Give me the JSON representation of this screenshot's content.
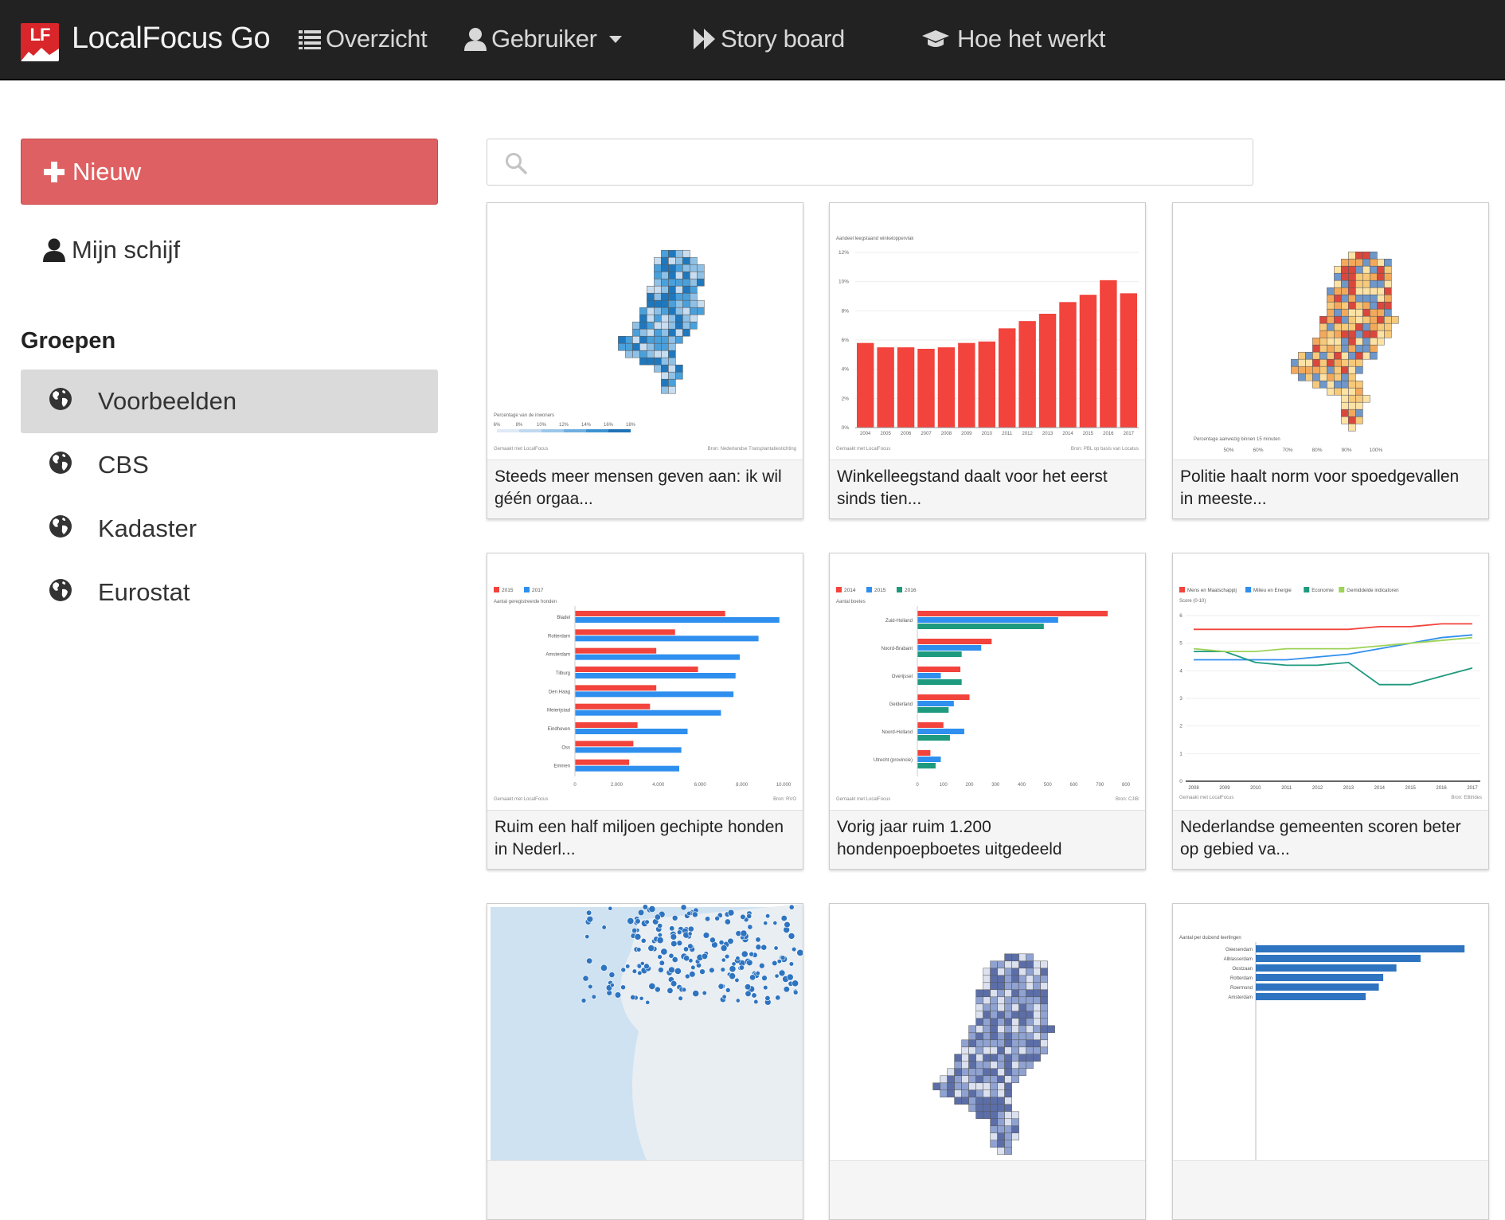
{
  "brand": {
    "logo_text": "LF",
    "name": "LocalFocus Go"
  },
  "nav": {
    "items": [
      {
        "label": "Overzicht",
        "icon": "list-icon"
      },
      {
        "label": "Gebruiker",
        "icon": "user-icon"
      },
      {
        "label": "Story board",
        "icon": "fast-forward-icon"
      },
      {
        "label": "Hoe het werkt",
        "icon": "graduation-cap-icon"
      }
    ]
  },
  "sidebar": {
    "new_button": "Nieuw",
    "my_drive": "Mijn schijf",
    "groups_title": "Groepen",
    "groups": [
      {
        "label": "Voorbeelden",
        "active": true
      },
      {
        "label": "CBS",
        "active": false
      },
      {
        "label": "Kadaster",
        "active": false
      },
      {
        "label": "Eurostat",
        "active": false
      }
    ]
  },
  "search": {
    "value": "",
    "placeholder": ""
  },
  "cards": [
    {
      "title": "Steeds meer mensen geven aan: ik wil géén orgaa...",
      "type": "map",
      "legend_title": "Percentage van de inwoners",
      "legend_ticks": [
        "6%",
        "8%",
        "10%",
        "12%",
        "14%",
        "16%",
        "18%"
      ],
      "footer_left": "Gemaakt met LocalFocus",
      "footer_right": "Bron: Nederlandse Transplantatiestichting",
      "colors": [
        "#c9ddf0",
        "#8fc1e6",
        "#4aa0db",
        "#1f78bd"
      ]
    },
    {
      "title": "Winkelleegstand daalt voor het eerst sinds tien...",
      "type": "bar",
      "chart_data": {
        "type": "bar",
        "ylabel": "Aandeel leegstaand winkeloppervlak",
        "categories": [
          "2004",
          "2005",
          "2006",
          "2007",
          "2008",
          "2009",
          "2010",
          "2011",
          "2012",
          "2013",
          "2014",
          "2015",
          "2016",
          "2017"
        ],
        "values": [
          5.8,
          5.5,
          5.5,
          5.4,
          5.5,
          5.8,
          5.9,
          6.8,
          7.3,
          7.8,
          8.6,
          9.1,
          10.1,
          9.2
        ],
        "yticks": [
          "0%",
          "2%",
          "4%",
          "6%",
          "8%",
          "10%",
          "12%"
        ],
        "ylim": [
          0,
          12
        ],
        "color": "#f2433c"
      },
      "footer_left": "Gemaakt met LocalFocus",
      "footer_right": "Bron: PBL op basis van Locatus"
    },
    {
      "title": "Politie haalt norm voor spoedgevallen in meeste...",
      "type": "map",
      "legend_title": "Percentage aanwezig binnen 15 minuten",
      "legend_ticks": [
        "50%",
        "60%",
        "70%",
        "80%",
        "90%",
        "100%"
      ],
      "colors": [
        "#fde2a6",
        "#f7c97a",
        "#f3a95c",
        "#6f97c9",
        "#d9473d"
      ]
    },
    {
      "title": "Ruim een half miljoen gechipte honden in Nederl...",
      "type": "hbar",
      "chart_data": {
        "type": "bar",
        "orientation": "horizontal",
        "xlabel": "Aantal geregistreerde honden",
        "categories": [
          "Bladel",
          "Rotterdam",
          "Amsterdam",
          "Tilburg",
          "Den Haag",
          "Meierijstad",
          "Eindhoven",
          "Oss",
          "Emmen"
        ],
        "series": [
          {
            "name": "2015",
            "color": "#f2433c",
            "values": [
              7200,
              4800,
              3900,
              5900,
              3900,
              3600,
              3000,
              2800,
              2600
            ]
          },
          {
            "name": "2017",
            "color": "#2f8fef",
            "values": [
              9800,
              8800,
              7900,
              7700,
              7600,
              7000,
              5400,
              5100,
              5000
            ]
          }
        ],
        "xticks": [
          "0",
          "2.000",
          "4.000",
          "6.000",
          "8.000",
          "10.000"
        ],
        "xlim": [
          0,
          10000
        ]
      },
      "footer_left": "Gemaakt met LocalFocus",
      "footer_right": "Bron: RVO"
    },
    {
      "title": "Vorig jaar ruim 1.200 hondenpoepboetes uitgedeeld",
      "type": "hbar",
      "chart_data": {
        "type": "bar",
        "orientation": "horizontal",
        "xlabel": "Aantal boetes",
        "categories": [
          "Zuid-Holland",
          "Noord-Brabant",
          "Overijssel",
          "Gelderland",
          "Noord-Holland",
          "Utrecht (provincie)"
        ],
        "series": [
          {
            "name": "2014",
            "color": "#f2433c",
            "values": [
              730,
              285,
              165,
              200,
              100,
              50
            ]
          },
          {
            "name": "2015",
            "color": "#2f8fef",
            "values": [
              540,
              245,
              90,
              140,
              180,
              90
            ]
          },
          {
            "name": "2016",
            "color": "#1e9a7e",
            "values": [
              485,
              170,
              170,
              120,
              125,
              70
            ]
          }
        ],
        "xticks": [
          "0",
          "100",
          "200",
          "300",
          "400",
          "500",
          "600",
          "700",
          "800"
        ],
        "xlim": [
          0,
          800
        ]
      },
      "footer_left": "Gemaakt met LocalFocus",
      "footer_right": "Bron: CJIB"
    },
    {
      "title": "Nederlandse gemeenten scoren beter op gebied va...",
      "type": "line",
      "chart_data": {
        "type": "line",
        "ylabel": "Score (0-10)",
        "x": [
          "2008",
          "2009",
          "2010",
          "2011",
          "2012",
          "2013",
          "2014",
          "2015",
          "2016",
          "2017"
        ],
        "series": [
          {
            "name": "Mens en Maatschappij",
            "color": "#f2433c",
            "values": [
              5.5,
              5.5,
              5.5,
              5.5,
              5.5,
              5.5,
              5.6,
              5.6,
              5.7,
              5.7
            ]
          },
          {
            "name": "Milieu en Energie",
            "color": "#2f8fef",
            "values": [
              4.4,
              4.4,
              4.4,
              4.4,
              4.5,
              4.6,
              4.8,
              5.0,
              5.2,
              5.3
            ]
          },
          {
            "name": "Economie",
            "color": "#1e9a7e",
            "values": [
              4.7,
              4.7,
              4.3,
              4.2,
              4.2,
              4.3,
              3.5,
              3.5,
              3.8,
              4.1
            ]
          },
          {
            "name": "Gemiddelde indicatoren",
            "color": "#9dd357",
            "values": [
              4.8,
              4.7,
              4.7,
              4.8,
              4.8,
              4.8,
              4.9,
              5.0,
              5.1,
              5.2
            ]
          }
        ],
        "yticks": [
          "0",
          "1",
          "2",
          "3",
          "4",
          "5",
          "6"
        ],
        "ylim": [
          0,
          6
        ]
      },
      "footer_left": "Gemaakt met LocalFocus",
      "footer_right": "Bron: Ellitrides"
    },
    {
      "title": "",
      "type": "dotmap",
      "colors": [
        "#cfe2f1",
        "#2e74c0"
      ]
    },
    {
      "title": "",
      "type": "map2",
      "colors": [
        "#dbe1ef",
        "#8fa2d1",
        "#5c6ea8"
      ]
    },
    {
      "title": "",
      "type": "hbar2",
      "chart_data": {
        "type": "bar",
        "orientation": "horizontal",
        "xlabel": "Aantal per duizend leerlingen",
        "categories": [
          "Gieesendam",
          "Alblasserdam",
          "Oostzaan",
          "Rotterdam",
          "Roermond",
          "Amsterdam"
        ],
        "values": [
          95,
          75,
          64,
          58,
          56,
          50
        ],
        "color": "#2e74c0",
        "xlim": [
          0,
          100
        ]
      }
    }
  ]
}
